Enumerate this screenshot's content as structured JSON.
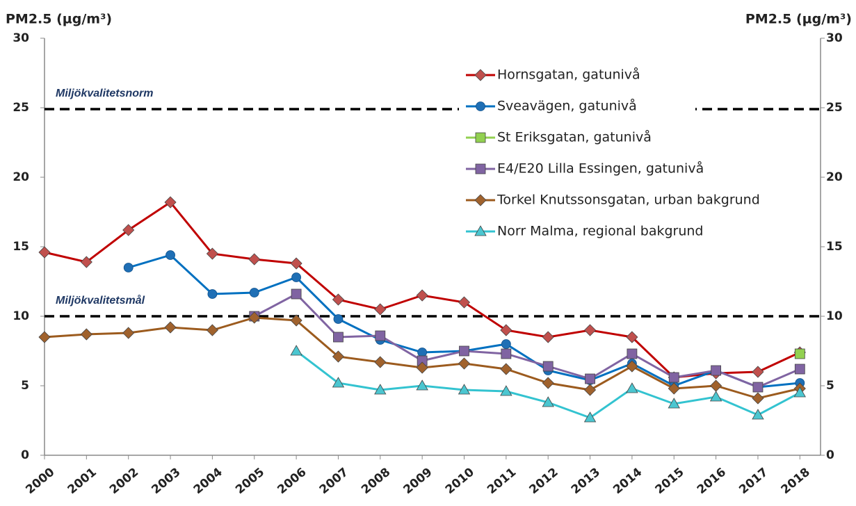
{
  "chart_data": {
    "type": "line",
    "y_label": "PM2.5 (µg/m³)",
    "y2_label": "PM2.5 (µg/m³)",
    "categories": [
      "2000",
      "2001",
      "2002",
      "2003",
      "2004",
      "2005",
      "2006",
      "2007",
      "2008",
      "2009",
      "2010",
      "2011",
      "2012",
      "2013",
      "2014",
      "2015",
      "2016",
      "2017",
      "2018"
    ],
    "ylim": [
      0,
      30
    ],
    "yticks": [
      0,
      5,
      10,
      15,
      20,
      25,
      30
    ],
    "y2lim": [
      0,
      30
    ],
    "y2ticks": [
      0,
      5,
      10,
      15,
      20,
      25,
      30
    ],
    "reference_lines": [
      {
        "label": "Miljökvalitetsnorm",
        "value": 24.9,
        "color": "#000000"
      },
      {
        "label": "Miljökvalitetsmål",
        "value": 10,
        "color": "#000000"
      }
    ],
    "legend": "top-right",
    "series": [
      {
        "name": "Hornsgatan, gatunivå",
        "color": "#c00000",
        "marker_color": "#c0504d",
        "marker": "diamond",
        "values": [
          14.6,
          13.9,
          16.2,
          18.2,
          14.5,
          14.1,
          13.8,
          11.2,
          10.5,
          11.5,
          11.0,
          9.0,
          8.5,
          9.0,
          8.5,
          5.6,
          5.9,
          6.0,
          7.4
        ]
      },
      {
        "name": "Sveavägen, gatunivå",
        "color": "#0070c0",
        "marker_color": "#1f6fb5",
        "marker": "circle",
        "values": [
          null,
          null,
          13.5,
          14.4,
          11.6,
          11.7,
          12.8,
          9.8,
          8.3,
          7.4,
          7.5,
          8.0,
          6.1,
          5.4,
          6.6,
          5.0,
          6.1,
          4.9,
          5.2
        ]
      },
      {
        "name": "St Eriksgatan, gatunivå",
        "color": "#92d050",
        "marker_color": "#92d050",
        "marker": "square",
        "values": [
          null,
          null,
          null,
          null,
          null,
          null,
          null,
          null,
          null,
          null,
          null,
          null,
          null,
          null,
          null,
          null,
          null,
          null,
          7.3
        ]
      },
      {
        "name": "E4/E20 Lilla Essingen, gatunivå",
        "color": "#8064a2",
        "marker_color": "#8064a2",
        "marker": "square",
        "values": [
          null,
          null,
          null,
          null,
          null,
          10.0,
          11.6,
          8.5,
          8.6,
          6.8,
          7.5,
          7.3,
          6.4,
          5.5,
          7.3,
          5.6,
          6.1,
          4.9,
          6.2
        ]
      },
      {
        "name": "Torkel Knutssonsgatan, urban bakgrund",
        "color": "#9c5b1e",
        "marker_color": "#a0622d",
        "marker": "diamond",
        "values": [
          8.5,
          8.7,
          8.8,
          9.2,
          9.0,
          9.9,
          9.7,
          7.1,
          6.7,
          6.3,
          6.6,
          6.2,
          5.2,
          4.7,
          6.4,
          4.8,
          5.0,
          4.1,
          4.8
        ]
      },
      {
        "name": "Norr Malma, regional bakgrund",
        "color": "#33c3d0",
        "marker_color": "#4bc6d0",
        "marker": "triangle",
        "values": [
          null,
          null,
          null,
          null,
          null,
          null,
          7.5,
          5.2,
          4.7,
          5.0,
          4.7,
          4.6,
          3.8,
          2.7,
          4.8,
          3.7,
          4.2,
          2.9,
          4.5
        ]
      }
    ]
  }
}
